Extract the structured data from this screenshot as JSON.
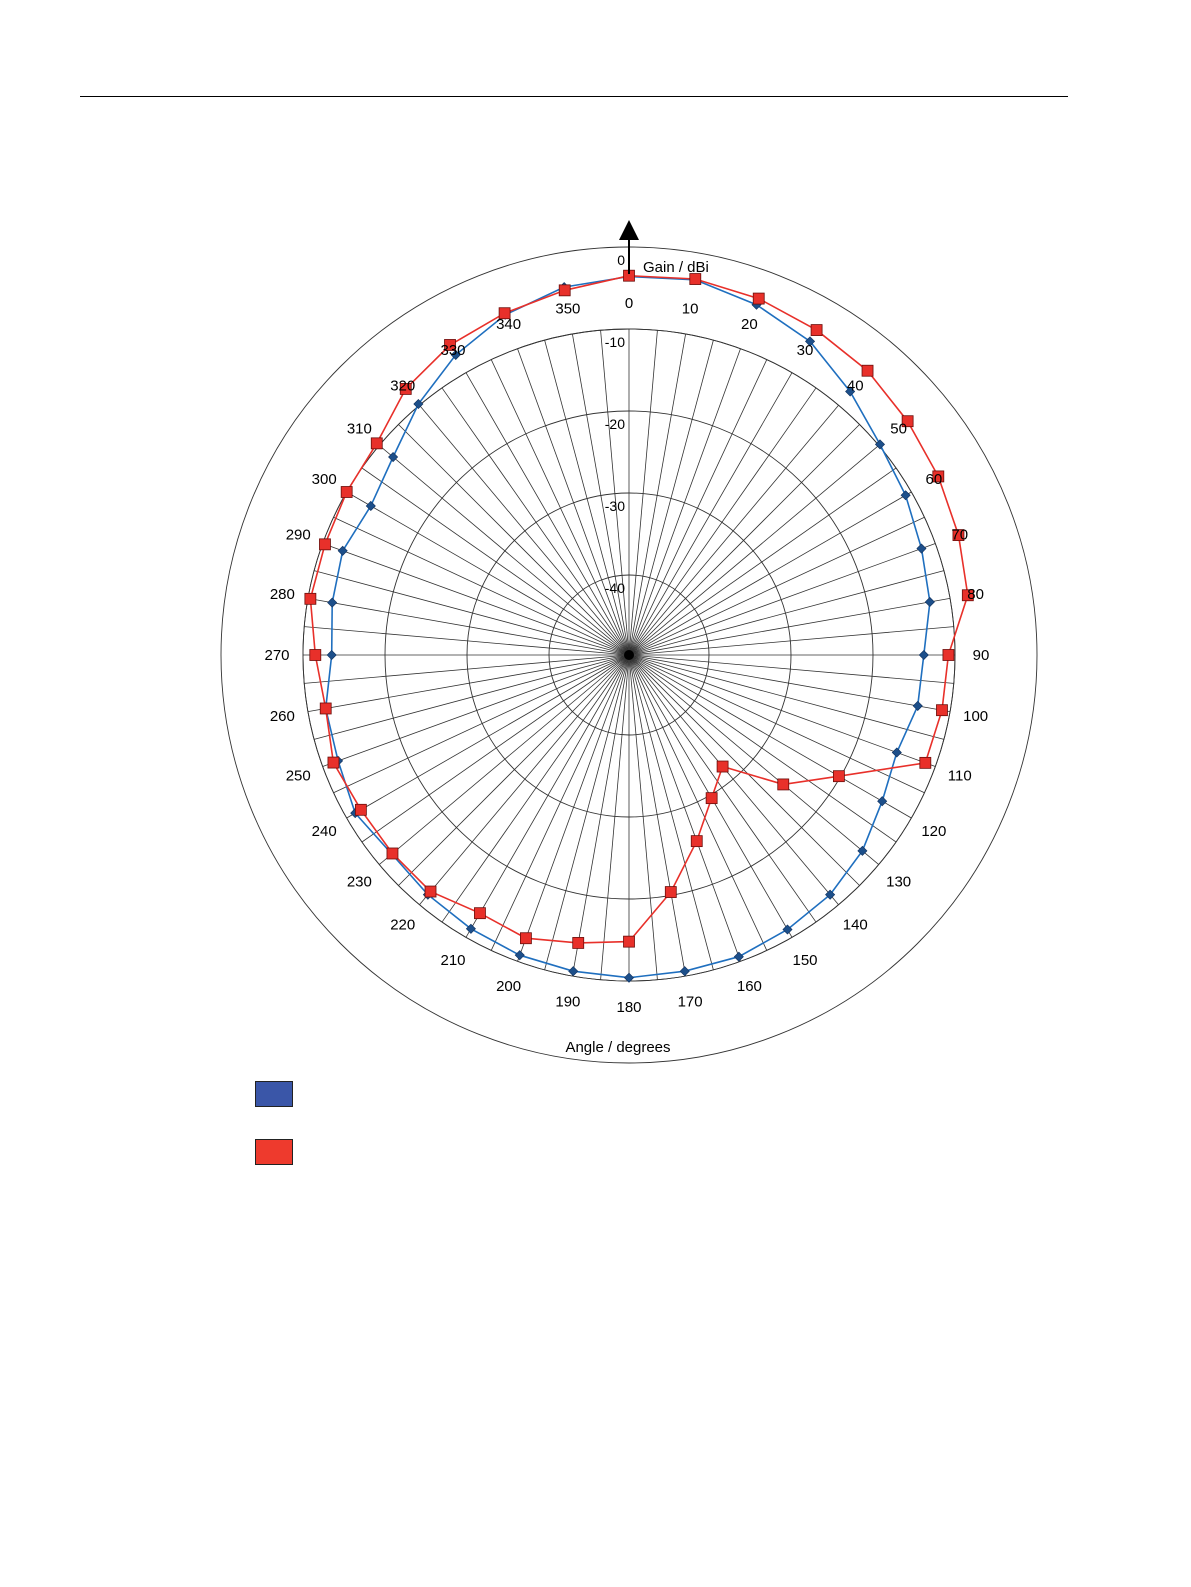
{
  "chart_data": {
    "type": "polar-line",
    "radial_axis_label": "Gain / dBi",
    "angular_axis_label": "Angle / degrees",
    "radial_range": [
      -40,
      0
    ],
    "radial_ticks": [
      0,
      -10,
      -20,
      -30,
      -40
    ],
    "angle_ticks": [
      0,
      10,
      20,
      30,
      40,
      50,
      60,
      70,
      80,
      90,
      100,
      110,
      120,
      130,
      140,
      150,
      160,
      170,
      180,
      190,
      200,
      210,
      220,
      230,
      240,
      250,
      260,
      270,
      280,
      290,
      300,
      310,
      320,
      330,
      340,
      350
    ],
    "grid": true,
    "legend_position": "bottom-left",
    "series": [
      {
        "color": "#1f6fbf",
        "swatch_color": "#3a56a8",
        "marker": "diamond",
        "angles": [
          0,
          10,
          20,
          30,
          40,
          50,
          60,
          70,
          80,
          90,
          100,
          110,
          120,
          130,
          140,
          150,
          160,
          170,
          180,
          190,
          200,
          210,
          220,
          230,
          240,
          250,
          260,
          270,
          280,
          290,
          300,
          310,
          320,
          330,
          340,
          350
        ],
        "values": [
          -3.6,
          -3.3,
          -4.3,
          -5.6,
          -7.8,
          -9.8,
          -10.8,
          -11.8,
          -12.5,
          -13.8,
          -14.0,
          -15.0,
          -14.1,
          -12.6,
          -11.6,
          -11.1,
          -10.6,
          -10.6,
          -10.4,
          -10.6,
          -10.8,
          -11.2,
          -11.6,
          -12.0,
          -11.2,
          -12.0,
          -12.2,
          -13.5,
          -13.0,
          -12.6,
          -13.4,
          -12.2,
          -9.8,
          -7.5,
          -5.6,
          -4.2
        ]
      },
      {
        "color": "#e8302a",
        "swatch_color": "#ee3a2d",
        "marker": "square",
        "angles": [
          0,
          10,
          20,
          30,
          40,
          50,
          60,
          70,
          80,
          90,
          100,
          110,
          120,
          130,
          140,
          150,
          160,
          170,
          180,
          190,
          200,
          210,
          220,
          230,
          240,
          250,
          260,
          270,
          280,
          290,
          300,
          310,
          320,
          330,
          340,
          350
        ],
        "values": [
          -3.5,
          -3.2,
          -3.5,
          -4.0,
          -4.5,
          -5.4,
          -6.2,
          -7.0,
          -7.8,
          -10.8,
          -11.0,
          -11.3,
          -20.2,
          -25.2,
          -32.0,
          -29.6,
          -25.6,
          -20.4,
          -14.8,
          -14.1,
          -13.0,
          -13.4,
          -12.1,
          -12.1,
          -12.0,
          -11.4,
          -12.2,
          -11.5,
          -10.3,
          -10.3,
          -10.0,
          -9.6,
          -7.4,
          -6.1,
          -5.4,
          -4.6
        ]
      }
    ]
  }
}
